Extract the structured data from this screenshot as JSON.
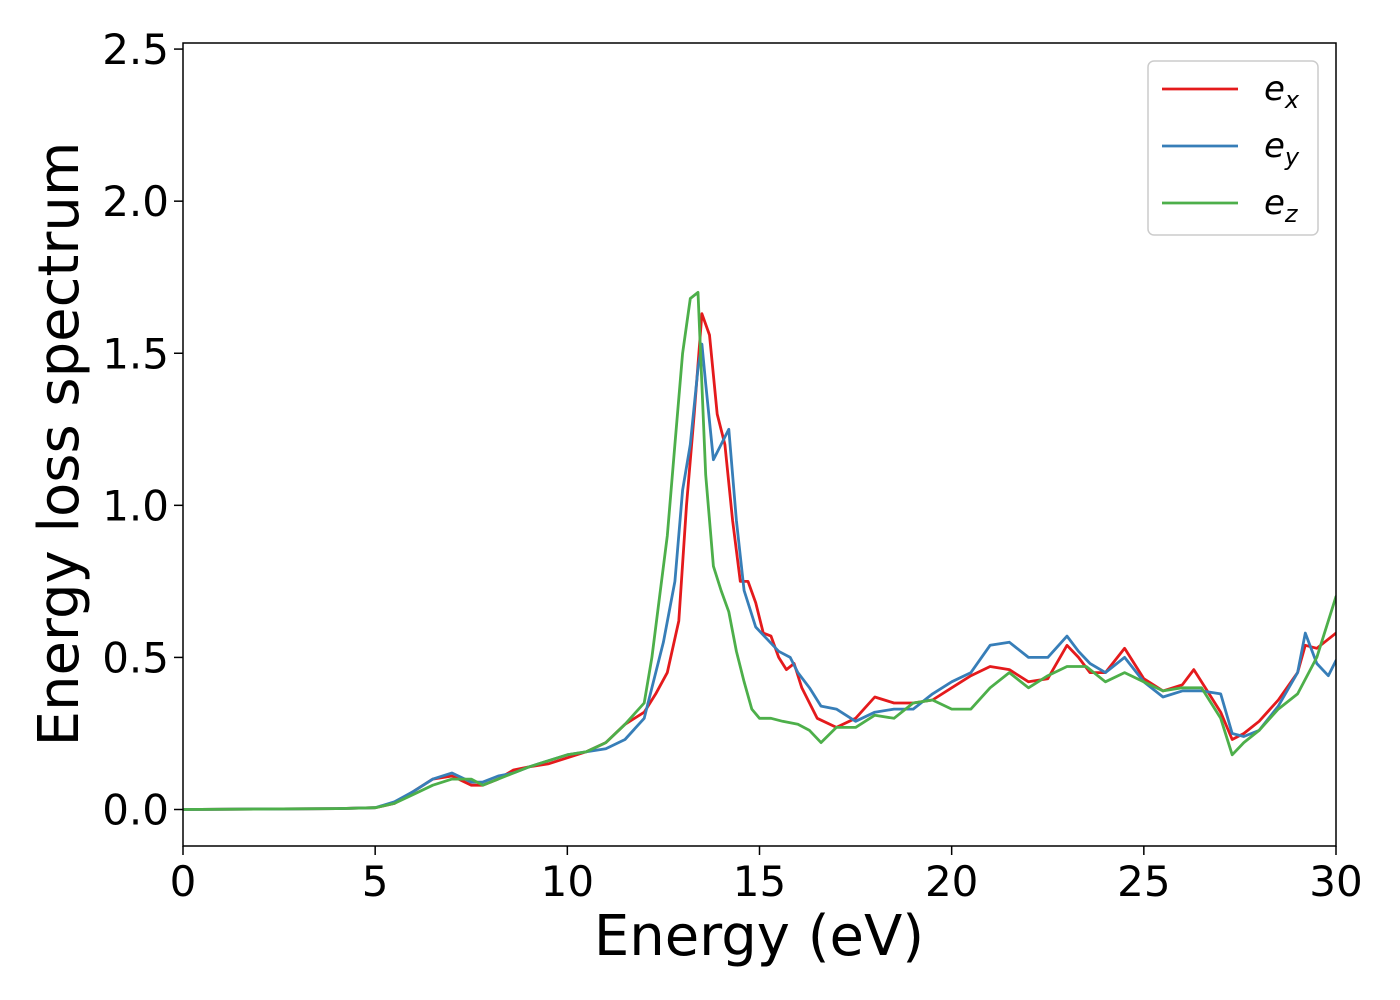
{
  "chart_data": {
    "type": "line",
    "xlabel": "Energy (eV)",
    "ylabel": "Energy loss spectrum",
    "xlim": [
      0,
      30
    ],
    "ylim": [
      -0.12,
      2.52
    ],
    "xticks": [
      "0",
      "5",
      "10",
      "15",
      "20",
      "25",
      "30"
    ],
    "yticks": [
      "0.0",
      "0.5",
      "1.0",
      "1.5",
      "2.0",
      "2.5"
    ],
    "grid": false,
    "legend_position": "top-right",
    "series": [
      {
        "name": "e_x",
        "base": "e",
        "sub": "x",
        "color": "#e41a1c",
        "x": [
          0,
          4,
          5,
          5.5,
          6,
          6.5,
          7,
          7.5,
          7.8,
          8.2,
          8.6,
          9,
          9.5,
          10,
          10.5,
          11,
          11.5,
          12,
          12.3,
          12.6,
          12.9,
          13.1,
          13.3,
          13.5,
          13.7,
          13.9,
          14.1,
          14.3,
          14.5,
          14.7,
          14.9,
          15.1,
          15.3,
          15.5,
          15.7,
          15.9,
          16.1,
          16.5,
          17,
          17.5,
          18,
          18.5,
          19,
          19.5,
          20,
          20.5,
          21,
          21.5,
          22,
          22.5,
          23,
          23.3,
          23.6,
          24,
          24.5,
          25,
          25.5,
          26,
          26.3,
          26.6,
          27,
          27.3,
          27.6,
          28,
          28.5,
          29,
          29.2,
          29.5,
          29.8,
          30
        ],
        "y": [
          0,
          0.003,
          0.006,
          0.02,
          0.06,
          0.1,
          0.11,
          0.08,
          0.08,
          0.1,
          0.13,
          0.14,
          0.15,
          0.17,
          0.19,
          0.22,
          0.28,
          0.32,
          0.38,
          0.45,
          0.62,
          1.0,
          1.3,
          1.63,
          1.56,
          1.3,
          1.2,
          0.95,
          0.75,
          0.75,
          0.68,
          0.58,
          0.57,
          0.5,
          0.46,
          0.48,
          0.4,
          0.3,
          0.27,
          0.3,
          0.37,
          0.35,
          0.35,
          0.36,
          0.4,
          0.44,
          0.47,
          0.46,
          0.42,
          0.43,
          0.54,
          0.5,
          0.45,
          0.45,
          0.53,
          0.43,
          0.39,
          0.41,
          0.46,
          0.4,
          0.32,
          0.23,
          0.25,
          0.29,
          0.36,
          0.45,
          0.54,
          0.53,
          0.56,
          0.58
        ]
      },
      {
        "name": "e_y",
        "base": "e",
        "sub": "y",
        "color": "#377eb8",
        "x": [
          0,
          4,
          5,
          5.5,
          6,
          6.5,
          7,
          7.5,
          7.8,
          8.2,
          8.6,
          9,
          9.5,
          10,
          10.5,
          11,
          11.5,
          12,
          12.5,
          12.8,
          13,
          13.2,
          13.4,
          13.5,
          13.6,
          13.8,
          14,
          14.2,
          14.4,
          14.6,
          14.9,
          15.2,
          15.5,
          15.8,
          16,
          16.3,
          16.6,
          17,
          17.5,
          18,
          18.5,
          19,
          19.5,
          20,
          20.5,
          21,
          21.5,
          22,
          22.5,
          23,
          23.3,
          23.6,
          24,
          24.5,
          25,
          25.5,
          26,
          26.5,
          27,
          27.3,
          27.6,
          28,
          28.5,
          29,
          29.2,
          29.5,
          29.8,
          30
        ],
        "y": [
          0,
          0.003,
          0.006,
          0.025,
          0.06,
          0.1,
          0.12,
          0.09,
          0.09,
          0.11,
          0.12,
          0.14,
          0.16,
          0.18,
          0.19,
          0.2,
          0.23,
          0.3,
          0.55,
          0.75,
          1.05,
          1.2,
          1.45,
          1.53,
          1.4,
          1.15,
          1.2,
          1.25,
          0.95,
          0.72,
          0.6,
          0.56,
          0.52,
          0.5,
          0.45,
          0.4,
          0.34,
          0.33,
          0.29,
          0.32,
          0.33,
          0.33,
          0.38,
          0.42,
          0.45,
          0.54,
          0.55,
          0.5,
          0.5,
          0.57,
          0.52,
          0.48,
          0.45,
          0.5,
          0.42,
          0.37,
          0.39,
          0.39,
          0.38,
          0.25,
          0.24,
          0.26,
          0.34,
          0.45,
          0.58,
          0.48,
          0.44,
          0.49
        ]
      },
      {
        "name": "e_z",
        "base": "e",
        "sub": "z",
        "color": "#4daf4a",
        "x": [
          0,
          4,
          5,
          5.5,
          6,
          6.5,
          7,
          7.5,
          7.8,
          8.2,
          8.6,
          9,
          9.5,
          10,
          10.5,
          11,
          11.5,
          12,
          12.2,
          12.4,
          12.6,
          12.8,
          13,
          13.2,
          13.4,
          13.6,
          13.8,
          14,
          14.2,
          14.4,
          14.6,
          14.8,
          15,
          15.3,
          15.6,
          16,
          16.3,
          16.6,
          17,
          17.5,
          18,
          18.5,
          19,
          19.5,
          20,
          20.5,
          21,
          21.5,
          22,
          22.5,
          23,
          23.5,
          24,
          24.5,
          25,
          25.5,
          26,
          26.5,
          27,
          27.3,
          27.6,
          28,
          28.5,
          29,
          29.5,
          30
        ],
        "y": [
          0,
          0.003,
          0.006,
          0.02,
          0.05,
          0.08,
          0.1,
          0.1,
          0.08,
          0.1,
          0.12,
          0.14,
          0.16,
          0.18,
          0.19,
          0.22,
          0.28,
          0.35,
          0.5,
          0.7,
          0.9,
          1.2,
          1.5,
          1.68,
          1.7,
          1.1,
          0.8,
          0.72,
          0.65,
          0.52,
          0.42,
          0.33,
          0.3,
          0.3,
          0.29,
          0.28,
          0.26,
          0.22,
          0.27,
          0.27,
          0.31,
          0.3,
          0.35,
          0.36,
          0.33,
          0.33,
          0.4,
          0.45,
          0.4,
          0.44,
          0.47,
          0.47,
          0.42,
          0.45,
          0.42,
          0.39,
          0.4,
          0.4,
          0.3,
          0.18,
          0.22,
          0.26,
          0.33,
          0.38,
          0.5,
          0.7
        ]
      }
    ]
  }
}
